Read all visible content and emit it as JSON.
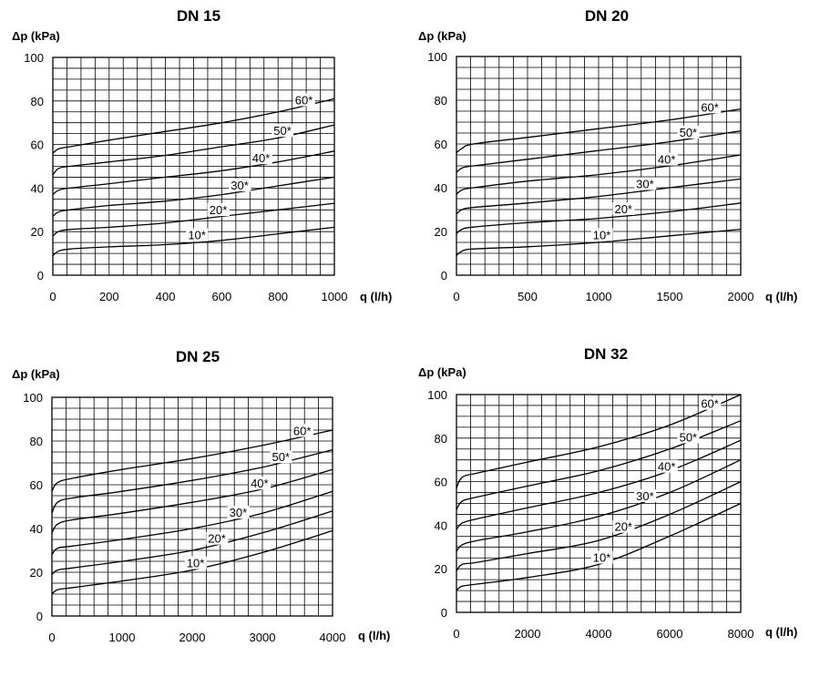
{
  "chart_data": [
    {
      "type": "line",
      "title": "DN 15",
      "ylabel": "Δp (kPa)",
      "xlabel": "q (l/h)",
      "xlim": [
        0,
        1000
      ],
      "ylim": [
        0,
        100
      ],
      "x_ticks": [
        0,
        200,
        400,
        600,
        800,
        1000
      ],
      "y_ticks": [
        0,
        20,
        40,
        60,
        80,
        100
      ],
      "grid": true,
      "series": [
        {
          "name": "10*",
          "points": [
            [
              0,
              9
            ],
            [
              20,
              11
            ],
            [
              60,
              12
            ],
            [
              200,
              13
            ],
            [
              400,
              14
            ],
            [
              600,
              16
            ],
            [
              800,
              19
            ],
            [
              1000,
              22
            ]
          ]
        },
        {
          "name": "20*",
          "points": [
            [
              0,
              18
            ],
            [
              20,
              20
            ],
            [
              60,
              21
            ],
            [
              200,
              22
            ],
            [
              400,
              24
            ],
            [
              600,
              27
            ],
            [
              800,
              30
            ],
            [
              1000,
              33
            ]
          ]
        },
        {
          "name": "30*",
          "points": [
            [
              0,
              27
            ],
            [
              20,
              29
            ],
            [
              60,
              30
            ],
            [
              200,
              32
            ],
            [
              400,
              34
            ],
            [
              600,
              37
            ],
            [
              800,
              41
            ],
            [
              1000,
              45
            ]
          ]
        },
        {
          "name": "40*",
          "points": [
            [
              0,
              37
            ],
            [
              20,
              39
            ],
            [
              60,
              40
            ],
            [
              200,
              42
            ],
            [
              400,
              45
            ],
            [
              600,
              48
            ],
            [
              800,
              52
            ],
            [
              1000,
              57
            ]
          ]
        },
        {
          "name": "50*",
          "points": [
            [
              0,
              46
            ],
            [
              20,
              49
            ],
            [
              60,
              50
            ],
            [
              200,
              52
            ],
            [
              400,
              55
            ],
            [
              600,
              59
            ],
            [
              800,
              63
            ],
            [
              1000,
              69
            ]
          ]
        },
        {
          "name": "60*",
          "points": [
            [
              0,
              56
            ],
            [
              20,
              58
            ],
            [
              60,
              59
            ],
            [
              200,
              62
            ],
            [
              400,
              66
            ],
            [
              600,
              70
            ],
            [
              800,
              75
            ],
            [
              1000,
              81
            ]
          ]
        }
      ]
    },
    {
      "type": "line",
      "title": "DN 20",
      "ylabel": "Δp (kPa)",
      "xlabel": "q (l/h)",
      "xlim": [
        0,
        2000
      ],
      "ylim": [
        0,
        100
      ],
      "x_ticks": [
        0,
        500,
        1000,
        1500,
        2000
      ],
      "y_ticks": [
        0,
        20,
        40,
        60,
        80,
        100
      ],
      "grid": true,
      "series": [
        {
          "name": "10*",
          "points": [
            [
              0,
              9
            ],
            [
              40,
              11
            ],
            [
              120,
              12
            ],
            [
              500,
              13
            ],
            [
              1000,
              15
            ],
            [
              1500,
              18
            ],
            [
              2000,
              21
            ]
          ]
        },
        {
          "name": "20*",
          "points": [
            [
              0,
              19
            ],
            [
              40,
              21
            ],
            [
              120,
              22
            ],
            [
              500,
              24
            ],
            [
              1000,
              26
            ],
            [
              1500,
              29
            ],
            [
              2000,
              33
            ]
          ]
        },
        {
          "name": "30*",
          "points": [
            [
              0,
              28
            ],
            [
              40,
              30
            ],
            [
              120,
              31
            ],
            [
              500,
              33
            ],
            [
              1000,
              36
            ],
            [
              1500,
              40
            ],
            [
              2000,
              44
            ]
          ]
        },
        {
          "name": "40*",
          "points": [
            [
              0,
              37
            ],
            [
              40,
              39
            ],
            [
              120,
              40
            ],
            [
              500,
              43
            ],
            [
              1000,
              46
            ],
            [
              1500,
              50
            ],
            [
              2000,
              55
            ]
          ]
        },
        {
          "name": "50*",
          "points": [
            [
              0,
              47
            ],
            [
              40,
              49
            ],
            [
              120,
              50
            ],
            [
              500,
              53
            ],
            [
              1000,
              57
            ],
            [
              1500,
              61
            ],
            [
              2000,
              66
            ]
          ]
        },
        {
          "name": "60*",
          "points": [
            [
              0,
              56
            ],
            [
              40,
              58
            ],
            [
              120,
              60
            ],
            [
              500,
              63
            ],
            [
              1000,
              67
            ],
            [
              1500,
              71
            ],
            [
              2000,
              76
            ]
          ]
        }
      ]
    },
    {
      "type": "line",
      "title": "DN 25",
      "ylabel": "Δp (kPa)",
      "xlabel": "q (l/h)",
      "xlim": [
        0,
        4000
      ],
      "ylim": [
        0,
        100
      ],
      "x_ticks": [
        0,
        1000,
        2000,
        3000,
        4000
      ],
      "y_ticks": [
        0,
        20,
        40,
        60,
        80,
        100
      ],
      "grid": true,
      "series": [
        {
          "name": "10*",
          "points": [
            [
              0,
              10
            ],
            [
              80,
              12
            ],
            [
              300,
              13
            ],
            [
              1000,
              16
            ],
            [
              2000,
              21
            ],
            [
              3000,
              29
            ],
            [
              4000,
              39
            ]
          ]
        },
        {
          "name": "20*",
          "points": [
            [
              0,
              19
            ],
            [
              80,
              21
            ],
            [
              300,
              22
            ],
            [
              1000,
              25
            ],
            [
              2000,
              30
            ],
            [
              3000,
              38
            ],
            [
              4000,
              48
            ]
          ]
        },
        {
          "name": "30*",
          "points": [
            [
              0,
              28
            ],
            [
              80,
              31
            ],
            [
              300,
              32
            ],
            [
              1000,
              35
            ],
            [
              2000,
              40
            ],
            [
              3000,
              47
            ],
            [
              4000,
              57
            ]
          ]
        },
        {
          "name": "40*",
          "points": [
            [
              0,
              38
            ],
            [
              80,
              42
            ],
            [
              300,
              44
            ],
            [
              1000,
              47
            ],
            [
              2000,
              52
            ],
            [
              3000,
              58
            ],
            [
              4000,
              67
            ]
          ]
        },
        {
          "name": "50*",
          "points": [
            [
              0,
              47
            ],
            [
              80,
              52
            ],
            [
              300,
              54
            ],
            [
              1000,
              57
            ],
            [
              2000,
              62
            ],
            [
              3000,
              68
            ],
            [
              4000,
              76
            ]
          ]
        },
        {
          "name": "60*",
          "points": [
            [
              0,
              57
            ],
            [
              80,
              61
            ],
            [
              300,
              63
            ],
            [
              1000,
              67
            ],
            [
              2000,
              72
            ],
            [
              3000,
              78
            ],
            [
              4000,
              85
            ]
          ]
        }
      ]
    },
    {
      "type": "line",
      "title": "DN 32",
      "ylabel": "Δp (kPa)",
      "xlabel": "q (l/h)",
      "xlim": [
        0,
        8000
      ],
      "ylim": [
        0,
        100
      ],
      "x_ticks": [
        0,
        2000,
        4000,
        6000,
        8000
      ],
      "y_ticks": [
        0,
        20,
        40,
        60,
        80,
        100
      ],
      "grid": true,
      "series": [
        {
          "name": "10*",
          "points": [
            [
              0,
              10
            ],
            [
              160,
              12
            ],
            [
              600,
              13
            ],
            [
              2000,
              16
            ],
            [
              4000,
              22
            ],
            [
              6000,
              35
            ],
            [
              8000,
              50
            ]
          ]
        },
        {
          "name": "20*",
          "points": [
            [
              0,
              19
            ],
            [
              160,
              22
            ],
            [
              600,
              23
            ],
            [
              2000,
              27
            ],
            [
              4000,
              33
            ],
            [
              6000,
              45
            ],
            [
              8000,
              60
            ]
          ]
        },
        {
          "name": "30*",
          "points": [
            [
              0,
              28
            ],
            [
              160,
              31
            ],
            [
              600,
              33
            ],
            [
              2000,
              37
            ],
            [
              4000,
              44
            ],
            [
              6000,
              55
            ],
            [
              8000,
              70
            ]
          ]
        },
        {
          "name": "40*",
          "points": [
            [
              0,
              38
            ],
            [
              160,
              41
            ],
            [
              600,
              43
            ],
            [
              2000,
              48
            ],
            [
              4000,
              55
            ],
            [
              6000,
              65
            ],
            [
              8000,
              79
            ]
          ]
        },
        {
          "name": "50*",
          "points": [
            [
              0,
              47
            ],
            [
              160,
              51
            ],
            [
              600,
              53
            ],
            [
              2000,
              58
            ],
            [
              4000,
              65
            ],
            [
              6000,
              75
            ],
            [
              8000,
              88
            ]
          ]
        },
        {
          "name": "60*",
          "points": [
            [
              0,
              57
            ],
            [
              160,
              62
            ],
            [
              600,
              64
            ],
            [
              2000,
              69
            ],
            [
              4000,
              76
            ],
            [
              6000,
              86
            ],
            [
              8000,
              100
            ]
          ]
        }
      ]
    }
  ]
}
